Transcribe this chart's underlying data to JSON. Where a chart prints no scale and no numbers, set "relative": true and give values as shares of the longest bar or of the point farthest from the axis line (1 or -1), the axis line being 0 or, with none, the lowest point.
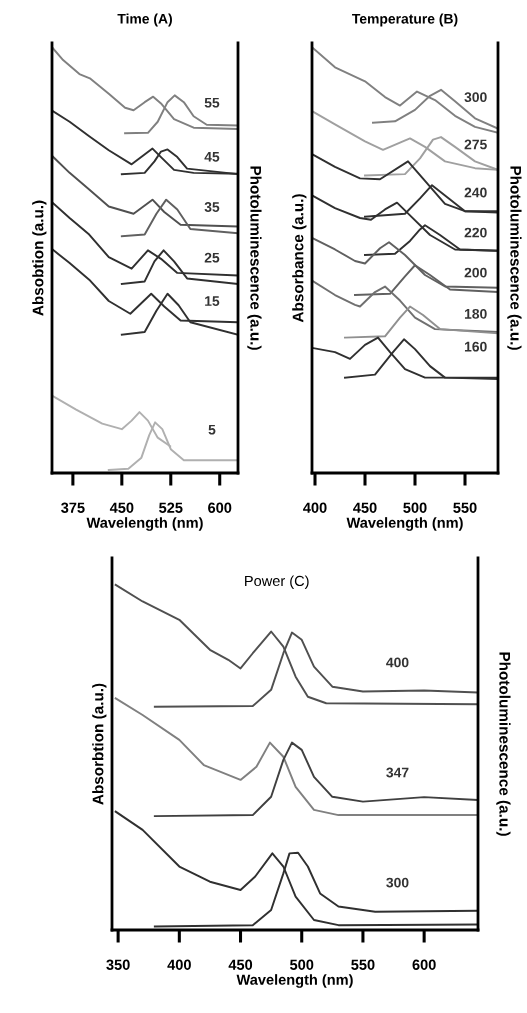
{
  "chart_data": [
    {
      "type": "line",
      "title": "Time (A)",
      "xlabel": "Wavelength (nm)",
      "ylabel": "Absobtion (a.u.)",
      "y2label": "Photoluminescence (a.u.)",
      "relative": true,
      "tick_labels": "x",
      "xlim": [
        343,
        628
      ],
      "xticks": [
        375,
        450,
        525,
        600
      ],
      "series": [
        {
          "color": "#808080",
          "x": [
            343,
            360,
            385,
            401,
            430,
            455,
            468,
            485,
            498,
            510,
            530,
            560,
            628
          ],
          "values": [
            1.0,
            0.97,
            0.937,
            0.927,
            0.891,
            0.858,
            0.852,
            0.871,
            0.884,
            0.868,
            0.831,
            0.811,
            0.808
          ]
        },
        {
          "color": "#808080",
          "x": [
            455,
            490,
            505,
            520,
            531,
            545,
            560,
            580,
            628
          ],
          "values": [
            0.798,
            0.799,
            0.825,
            0.871,
            0.887,
            0.871,
            0.838,
            0.818,
            0.816
          ]
        },
        {
          "color": "#303030",
          "x": [
            343,
            370,
            400,
            430,
            465,
            497,
            510,
            530,
            560,
            628
          ],
          "values": [
            0.851,
            0.825,
            0.791,
            0.758,
            0.725,
            0.762,
            0.742,
            0.712,
            0.705,
            0.703
          ]
        },
        {
          "color": "#303030",
          "x": [
            450,
            485,
            500,
            510,
            520,
            535,
            550,
            628
          ],
          "values": [
            0.702,
            0.705,
            0.732,
            0.755,
            0.76,
            0.742,
            0.715,
            0.702
          ]
        },
        {
          "color": "#505050",
          "x": [
            343,
            370,
            400,
            430,
            468,
            497,
            515,
            540,
            628
          ],
          "values": [
            0.745,
            0.705,
            0.666,
            0.626,
            0.609,
            0.642,
            0.613,
            0.583,
            0.579
          ]
        },
        {
          "color": "#606060",
          "x": [
            450,
            485,
            503,
            518,
            535,
            555,
            628
          ],
          "values": [
            0.556,
            0.56,
            0.609,
            0.642,
            0.619,
            0.573,
            0.563
          ]
        },
        {
          "color": "#303030",
          "x": [
            343,
            370,
            400,
            430,
            465,
            490,
            510,
            535,
            628
          ],
          "values": [
            0.636,
            0.599,
            0.56,
            0.507,
            0.48,
            0.523,
            0.503,
            0.47,
            0.464
          ]
        },
        {
          "color": "#303030",
          "x": [
            450,
            485,
            500,
            514,
            530,
            550,
            628
          ],
          "values": [
            0.444,
            0.45,
            0.497,
            0.523,
            0.497,
            0.457,
            0.444
          ]
        },
        {
          "color": "#303030",
          "x": [
            343,
            370,
            400,
            430,
            463,
            495,
            515,
            540,
            628
          ],
          "values": [
            0.526,
            0.493,
            0.454,
            0.404,
            0.374,
            0.421,
            0.391,
            0.358,
            0.354
          ]
        },
        {
          "color": "#303030",
          "x": [
            450,
            485,
            503,
            520,
            537,
            555,
            628
          ],
          "values": [
            0.325,
            0.331,
            0.381,
            0.421,
            0.394,
            0.354,
            0.325
          ]
        },
        {
          "color": "#b0b0b0",
          "x": [
            343,
            380,
            420,
            450,
            465,
            477,
            490,
            505,
            524
          ],
          "values": [
            0.182,
            0.149,
            0.116,
            0.103,
            0.123,
            0.143,
            0.123,
            0.083,
            0.063
          ]
        },
        {
          "color": "#b0b0b0",
          "x": [
            430,
            460,
            480,
            492,
            501,
            512,
            525,
            545,
            628
          ],
          "values": [
            0.007,
            0.01,
            0.036,
            0.089,
            0.119,
            0.103,
            0.056,
            0.03,
            0.03
          ]
        }
      ],
      "annotations": [
        "55",
        "45",
        "35",
        "25",
        "15",
        "5"
      ]
    },
    {
      "type": "line",
      "title": "Temperature (B)",
      "xlabel": "Wavelength (nm)",
      "ylabel": "Absorbance (a.u.)",
      "y2label": "Photoluminescence (a.u.)",
      "relative": true,
      "tick_labels": "x",
      "xlim": [
        397,
        583
      ],
      "xticks": [
        400,
        450,
        500,
        550
      ],
      "series": [
        {
          "color": "#808080",
          "x": [
            397,
            420,
            450,
            470,
            485,
            502,
            520,
            540,
            560,
            583
          ],
          "values": [
            1.0,
            0.953,
            0.92,
            0.883,
            0.863,
            0.896,
            0.876,
            0.839,
            0.813,
            0.799
          ]
        },
        {
          "color": "#808080",
          "x": [
            458,
            480,
            500,
            515,
            526,
            540,
            560,
            583
          ],
          "values": [
            0.823,
            0.826,
            0.853,
            0.886,
            0.9,
            0.873,
            0.833,
            0.809
          ]
        },
        {
          "color": "#a0a0a0",
          "x": [
            397,
            420,
            450,
            468,
            485,
            495,
            510,
            530,
            560,
            583
          ],
          "values": [
            0.85,
            0.819,
            0.779,
            0.759,
            0.776,
            0.786,
            0.766,
            0.732,
            0.716,
            0.712
          ]
        },
        {
          "color": "#a0a0a0",
          "x": [
            450,
            490,
            505,
            518,
            526,
            540,
            560,
            583
          ],
          "values": [
            0.699,
            0.702,
            0.739,
            0.783,
            0.789,
            0.766,
            0.732,
            0.712
          ]
        },
        {
          "color": "#303030",
          "x": [
            397,
            420,
            445,
            465,
            493,
            510,
            530,
            550,
            583
          ],
          "values": [
            0.749,
            0.719,
            0.692,
            0.69,
            0.732,
            0.686,
            0.632,
            0.615,
            0.612
          ]
        },
        {
          "color": "#303030",
          "x": [
            450,
            490,
            505,
            517,
            530,
            550,
            583
          ],
          "values": [
            0.602,
            0.609,
            0.645,
            0.676,
            0.652,
            0.615,
            0.615
          ]
        },
        {
          "color": "#303030",
          "x": [
            397,
            420,
            445,
            456,
            470,
            482,
            495,
            515,
            540,
            583
          ],
          "values": [
            0.652,
            0.622,
            0.599,
            0.595,
            0.619,
            0.635,
            0.605,
            0.559,
            0.525,
            0.522
          ]
        },
        {
          "color": "#303030",
          "x": [
            450,
            480,
            495,
            505,
            510,
            525,
            545,
            583
          ],
          "values": [
            0.512,
            0.515,
            0.545,
            0.572,
            0.582,
            0.559,
            0.525,
            0.522
          ]
        },
        {
          "color": "#606060",
          "x": [
            397,
            420,
            440,
            450,
            465,
            474,
            490,
            510,
            530,
            583
          ],
          "values": [
            0.552,
            0.525,
            0.498,
            0.492,
            0.528,
            0.542,
            0.512,
            0.465,
            0.438,
            0.435
          ]
        },
        {
          "color": "#606060",
          "x": [
            440,
            475,
            490,
            500,
            515,
            535,
            583
          ],
          "values": [
            0.418,
            0.421,
            0.462,
            0.488,
            0.465,
            0.431,
            0.425
          ]
        },
        {
          "color": "#707070",
          "x": [
            397,
            420,
            440,
            445,
            460,
            470,
            485,
            500,
            520,
            583
          ],
          "values": [
            0.452,
            0.418,
            0.395,
            0.391,
            0.425,
            0.438,
            0.405,
            0.365,
            0.338,
            0.331
          ]
        },
        {
          "color": "#909090",
          "x": [
            430,
            470,
            485,
            495,
            508,
            525,
            583
          ],
          "values": [
            0.318,
            0.321,
            0.365,
            0.391,
            0.371,
            0.338,
            0.328
          ]
        },
        {
          "color": "#303030",
          "x": [
            397,
            420,
            435,
            450,
            463,
            475,
            490,
            510,
            583
          ],
          "values": [
            0.294,
            0.284,
            0.268,
            0.301,
            0.318,
            0.284,
            0.244,
            0.224,
            0.224
          ]
        },
        {
          "color": "#303030",
          "x": [
            430,
            460,
            478,
            489,
            500,
            515,
            530,
            583
          ],
          "values": [
            0.224,
            0.231,
            0.284,
            0.314,
            0.291,
            0.251,
            0.224,
            0.221
          ]
        }
      ],
      "annotations": [
        "300",
        "275",
        "240",
        "220",
        "200",
        "180",
        "160"
      ]
    },
    {
      "type": "line",
      "title": "Power (C)",
      "xlabel": "Wavelength (nm)",
      "ylabel": "Absorbtion (a.u.)",
      "y2label": "Photoluminescence (a.u.)",
      "relative": true,
      "tick_labels": "x",
      "xlim": [
        345,
        644
      ],
      "xticks": [
        350,
        400,
        450,
        500,
        550,
        600
      ],
      "series": [
        {
          "color": "#505050",
          "x": [
            348,
            370,
            400,
            425,
            440,
            450,
            460,
            475,
            485,
            495,
            505,
            520,
            644
          ],
          "values": [
            1.0,
            0.952,
            0.899,
            0.812,
            0.783,
            0.758,
            0.802,
            0.865,
            0.821,
            0.734,
            0.676,
            0.657,
            0.654
          ]
        },
        {
          "color": "#505050",
          "x": [
            380,
            460,
            475,
            485,
            492,
            500,
            510,
            525,
            550,
            600,
            644
          ],
          "values": [
            0.647,
            0.649,
            0.696,
            0.802,
            0.862,
            0.841,
            0.763,
            0.705,
            0.691,
            0.694,
            0.688
          ]
        },
        {
          "color": "#808080",
          "x": [
            348,
            370,
            400,
            420,
            450,
            463,
            474,
            485,
            495,
            510,
            530,
            644
          ],
          "values": [
            0.671,
            0.623,
            0.551,
            0.478,
            0.435,
            0.473,
            0.543,
            0.502,
            0.415,
            0.348,
            0.333,
            0.333
          ]
        },
        {
          "color": "#404040",
          "x": [
            380,
            460,
            475,
            485,
            492,
            500,
            510,
            525,
            550,
            600,
            644
          ],
          "values": [
            0.33,
            0.333,
            0.386,
            0.493,
            0.543,
            0.522,
            0.444,
            0.386,
            0.372,
            0.385,
            0.377
          ]
        },
        {
          "color": "#303030",
          "x": [
            348,
            370,
            400,
            425,
            450,
            462,
            476,
            485,
            495,
            510,
            530,
            644
          ],
          "values": [
            0.343,
            0.29,
            0.184,
            0.14,
            0.116,
            0.155,
            0.222,
            0.184,
            0.097,
            0.029,
            0.014,
            0.016
          ]
        },
        {
          "color": "#303030",
          "x": [
            380,
            460,
            475,
            485,
            490,
            497,
            505,
            515,
            530,
            560,
            644
          ],
          "values": [
            0.01,
            0.014,
            0.058,
            0.164,
            0.222,
            0.224,
            0.184,
            0.106,
            0.068,
            0.053,
            0.056
          ]
        }
      ],
      "annotations": [
        "400",
        "347",
        "300"
      ]
    }
  ]
}
